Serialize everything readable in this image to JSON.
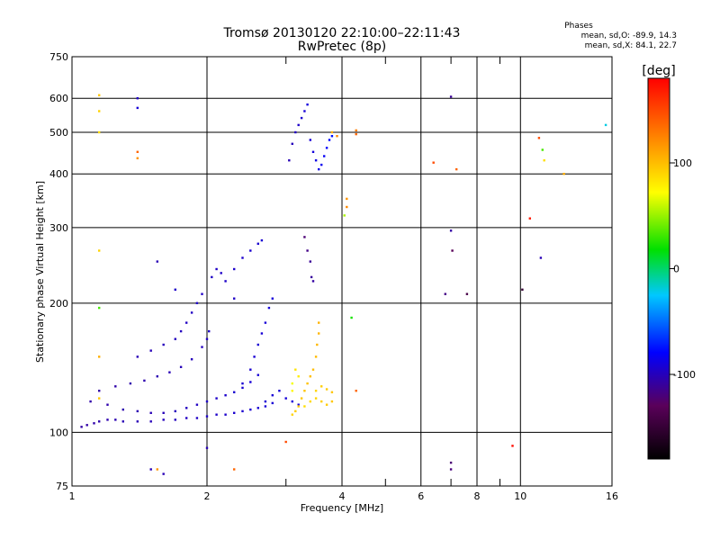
{
  "chart_data": {
    "type": "scatter",
    "title": "Tromsø 20130120 22:10:00–22:11:43",
    "subtitle": "RwPretec (8p)",
    "xlabel": "Frequency [MHz]",
    "ylabel": "Stationary phase Virtual Height [km]",
    "x_scale": "log",
    "y_scale": "log",
    "xlim": [
      1,
      16
    ],
    "ylim": [
      75,
      750
    ],
    "x_ticks": [
      1,
      2,
      4,
      6,
      8,
      10,
      16
    ],
    "x_minor_ticks": [
      3,
      5,
      7,
      9
    ],
    "y_ticks": [
      75,
      100,
      200,
      300,
      400,
      500,
      600,
      750
    ],
    "grid": true,
    "stats_header": "Phases",
    "stats_o": "mean, sd,O: -89.9, 14.3",
    "stats_x": "mean, sd,X:  84.1, 22.7",
    "colorbar": {
      "label": "[deg]",
      "range": [
        -180,
        180
      ],
      "ticks": [
        -100,
        0,
        100
      ],
      "colors": [
        "#000000",
        "#5a005a",
        "#0000ff",
        "#00c8ff",
        "#00e000",
        "#ffff00",
        "#ff8000",
        "#ff0000"
      ]
    },
    "series": [
      {
        "points": [
          [
            1.05,
            103,
            -105
          ],
          [
            1.08,
            104,
            -105
          ],
          [
            1.12,
            105,
            -104
          ],
          [
            1.15,
            106,
            -103
          ],
          [
            1.2,
            107,
            -102
          ],
          [
            1.25,
            107,
            -101
          ],
          [
            1.3,
            106,
            -100
          ],
          [
            1.4,
            106,
            -100
          ],
          [
            1.5,
            106,
            -99
          ],
          [
            1.6,
            107,
            -98
          ],
          [
            1.7,
            107,
            -97
          ],
          [
            1.8,
            108,
            -96
          ],
          [
            1.9,
            108,
            -95
          ],
          [
            2.0,
            109,
            -94
          ],
          [
            2.1,
            110,
            -94
          ],
          [
            2.2,
            110,
            -93
          ],
          [
            2.3,
            111,
            -92
          ],
          [
            2.4,
            112,
            -92
          ],
          [
            2.5,
            113,
            -91
          ],
          [
            2.6,
            114,
            -91
          ],
          [
            2.7,
            115,
            -90
          ],
          [
            2.8,
            117,
            -90
          ],
          [
            1.1,
            118,
            -104
          ],
          [
            1.2,
            116,
            -103
          ],
          [
            1.3,
            113,
            -102
          ],
          [
            1.4,
            112,
            -101
          ],
          [
            1.5,
            111,
            -100
          ],
          [
            1.6,
            111,
            -99
          ],
          [
            1.7,
            112,
            -98
          ],
          [
            1.8,
            114,
            -97
          ],
          [
            1.9,
            116,
            -96
          ],
          [
            2.0,
            118,
            -95
          ],
          [
            2.1,
            120,
            -94
          ],
          [
            2.2,
            122,
            -93
          ],
          [
            2.3,
            124,
            -92
          ],
          [
            2.4,
            127,
            -91
          ],
          [
            2.5,
            131,
            -90
          ],
          [
            2.6,
            136,
            -90
          ],
          [
            1.15,
            125,
            -105
          ],
          [
            1.25,
            128,
            -104
          ],
          [
            1.35,
            130,
            -103
          ],
          [
            1.45,
            132,
            -102
          ],
          [
            1.55,
            135,
            -101
          ],
          [
            1.65,
            138,
            -100
          ],
          [
            1.75,
            142,
            -99
          ],
          [
            1.85,
            148,
            -98
          ],
          [
            1.95,
            158,
            -97
          ],
          [
            2.0,
            165,
            -96
          ],
          [
            2.02,
            172,
            -95
          ],
          [
            1.4,
            150,
            -100
          ],
          [
            1.5,
            155,
            -99
          ],
          [
            1.6,
            160,
            -98
          ],
          [
            1.7,
            165,
            -97
          ],
          [
            1.75,
            172,
            -97
          ],
          [
            1.8,
            180,
            -96
          ],
          [
            1.85,
            190,
            -96
          ],
          [
            1.9,
            200,
            -95
          ],
          [
            1.95,
            210,
            -95
          ],
          [
            1.7,
            215,
            -94
          ],
          [
            2.05,
            230,
            -95
          ],
          [
            2.1,
            240,
            -95
          ],
          [
            2.15,
            235,
            -94
          ],
          [
            2.2,
            225,
            -94
          ],
          [
            2.3,
            240,
            -93
          ],
          [
            2.4,
            255,
            -93
          ],
          [
            2.5,
            265,
            -92
          ],
          [
            2.6,
            275,
            -92
          ],
          [
            2.65,
            280,
            -91
          ],
          [
            2.4,
            130,
            -92
          ],
          [
            2.5,
            140,
            -92
          ],
          [
            2.55,
            150,
            -91
          ],
          [
            2.6,
            160,
            -91
          ],
          [
            2.65,
            170,
            -90
          ],
          [
            2.7,
            180,
            -90
          ],
          [
            2.75,
            195,
            -89
          ],
          [
            2.8,
            205,
            -89
          ],
          [
            2.7,
            118,
            -91
          ],
          [
            2.8,
            122,
            -90
          ],
          [
            2.9,
            125,
            -90
          ],
          [
            3.0,
            120,
            -89
          ],
          [
            3.1,
            118,
            -89
          ],
          [
            3.2,
            116,
            -88
          ],
          [
            1.55,
            250,
            -100
          ],
          [
            2.3,
            205,
            -95
          ],
          [
            3.05,
            430,
            -100
          ],
          [
            3.1,
            470,
            -98
          ],
          [
            3.15,
            500,
            -96
          ],
          [
            3.2,
            520,
            -94
          ],
          [
            3.25,
            540,
            -92
          ],
          [
            3.3,
            560,
            -90
          ],
          [
            3.35,
            580,
            -88
          ],
          [
            3.4,
            480,
            -90
          ],
          [
            3.45,
            450,
            -88
          ],
          [
            3.5,
            430,
            -86
          ],
          [
            3.55,
            410,
            -84
          ],
          [
            3.6,
            420,
            -82
          ],
          [
            3.65,
            440,
            -80
          ],
          [
            3.7,
            460,
            -78
          ],
          [
            3.75,
            480,
            -76
          ],
          [
            3.8,
            490,
            -74
          ],
          [
            3.3,
            285,
            -120
          ],
          [
            3.35,
            265,
            -115
          ],
          [
            3.4,
            250,
            -110
          ],
          [
            3.42,
            230,
            -108
          ],
          [
            3.45,
            225,
            -106
          ],
          [
            7.0,
            605,
            -110
          ],
          [
            7.0,
            295,
            -105
          ],
          [
            7.05,
            265,
            -130
          ],
          [
            6.8,
            210,
            -115
          ],
          [
            7.6,
            210,
            -140
          ],
          [
            10.1,
            215,
            -150
          ],
          [
            7.0,
            85,
            -120
          ],
          [
            7.0,
            82,
            -118
          ],
          [
            11.1,
            255,
            -100
          ],
          [
            1.5,
            82,
            -100
          ],
          [
            1.6,
            80,
            -100
          ],
          [
            2.0,
            92,
            -100
          ],
          [
            1.4,
            600,
            -95
          ],
          [
            1.4,
            570,
            -90
          ],
          [
            15.5,
            520,
            -20
          ]
        ]
      },
      {
        "points": [
          [
            3.1,
            110,
            95
          ],
          [
            3.15,
            112,
            97
          ],
          [
            3.2,
            115,
            98
          ],
          [
            3.25,
            120,
            100
          ],
          [
            3.3,
            125,
            101
          ],
          [
            3.35,
            130,
            102
          ],
          [
            3.4,
            135,
            103
          ],
          [
            3.45,
            140,
            104
          ],
          [
            3.5,
            150,
            105
          ],
          [
            3.52,
            160,
            106
          ],
          [
            3.55,
            170,
            107
          ],
          [
            3.55,
            180,
            108
          ],
          [
            3.3,
            115,
            90
          ],
          [
            3.4,
            118,
            92
          ],
          [
            3.5,
            120,
            94
          ],
          [
            3.6,
            118,
            96
          ],
          [
            3.7,
            116,
            98
          ],
          [
            3.8,
            118,
            100
          ],
          [
            3.5,
            125,
            95
          ],
          [
            3.6,
            128,
            97
          ],
          [
            3.7,
            126,
            99
          ],
          [
            3.8,
            124,
            100
          ],
          [
            3.1,
            125,
            80
          ],
          [
            3.2,
            135,
            85
          ],
          [
            3.15,
            140,
            88
          ],
          [
            3.1,
            130,
            75
          ],
          [
            1.15,
            610,
            100
          ],
          [
            1.15,
            560,
            95
          ],
          [
            1.15,
            500,
            90
          ],
          [
            1.15,
            265,
            95
          ],
          [
            1.15,
            195,
            40
          ],
          [
            1.15,
            150,
            110
          ],
          [
            1.4,
            450,
            140
          ],
          [
            1.4,
            435,
            120
          ],
          [
            3.8,
            500,
            110
          ],
          [
            3.9,
            490,
            125
          ],
          [
            4.1,
            350,
            120
          ],
          [
            4.1,
            335,
            125
          ],
          [
            4.05,
            320,
            60
          ],
          [
            4.3,
            505,
            130
          ],
          [
            4.3,
            495,
            140
          ],
          [
            4.2,
            185,
            30
          ],
          [
            4.3,
            125,
            140
          ],
          [
            6.4,
            425,
            150
          ],
          [
            7.2,
            410,
            140
          ],
          [
            10.5,
            315,
            170
          ],
          [
            11.0,
            485,
            150
          ],
          [
            11.3,
            430,
            90
          ],
          [
            11.2,
            455,
            40
          ],
          [
            12.5,
            400,
            110
          ],
          [
            9.6,
            93,
            175
          ],
          [
            3.0,
            95,
            150
          ],
          [
            2.3,
            82,
            140
          ],
          [
            1.55,
            82,
            120
          ],
          [
            1.15,
            120,
            100
          ]
        ]
      }
    ]
  }
}
